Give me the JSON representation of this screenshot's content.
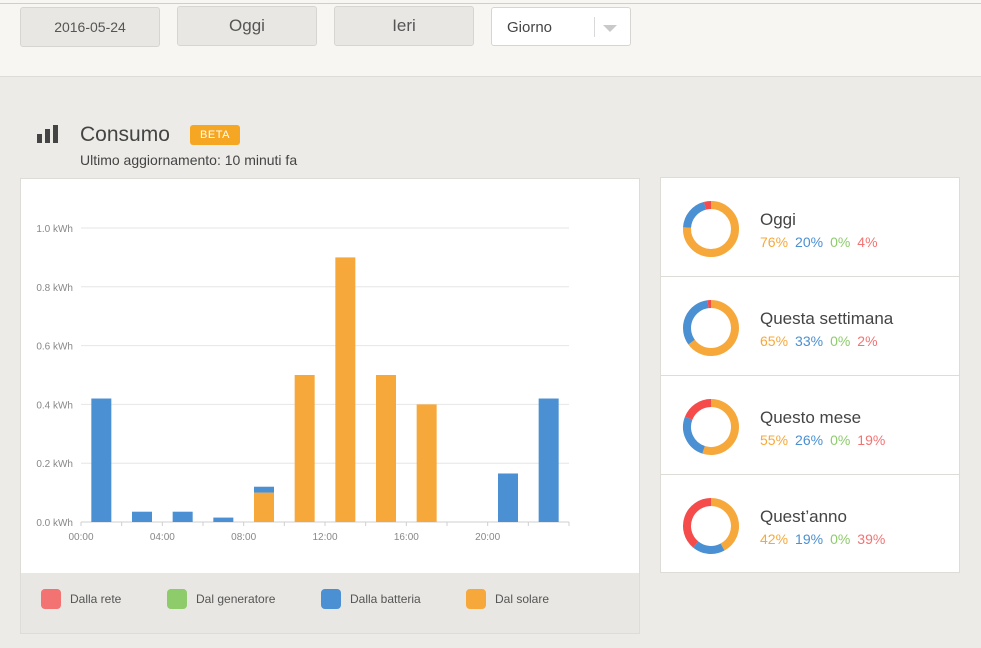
{
  "toolbar": {
    "date": "2016-05-24",
    "today_label": "Oggi",
    "yesterday_label": "Ieri",
    "period_select": "Giorno"
  },
  "section": {
    "title": "Consumo",
    "badge": "BETA",
    "updated": "Ultimo aggiornamento: 10 minuti fa"
  },
  "colors": {
    "grid": "#f54b4b",
    "generator": "#7cc35a",
    "battery": "#4a90d2",
    "solar": "#f7a83a"
  },
  "legend": [
    {
      "label": "Dalla rete",
      "color": "#f37373"
    },
    {
      "label": "Dal generatore",
      "color": "#8dcb6b"
    },
    {
      "label": "Dalla batteria",
      "color": "#4a90d2"
    },
    {
      "label": "Dal solare",
      "color": "#f7a83a"
    }
  ],
  "chart_data": {
    "type": "bar",
    "stacked": true,
    "ylim": [
      0,
      1.0
    ],
    "y_ticks": [
      "0.0 kWh",
      "0.2 kWh",
      "0.4 kWh",
      "0.6 kWh",
      "0.8 kWh",
      "1.0 kWh"
    ],
    "x_ticks": [
      "00:00",
      "04:00",
      "08:00",
      "12:00",
      "16:00",
      "20:00"
    ],
    "hours": [
      1,
      3,
      5,
      7,
      9,
      11,
      13,
      15,
      17,
      19,
      21,
      23
    ],
    "series": [
      {
        "name": "Dal solare",
        "color": "#f7a83a",
        "values": [
          0,
          0,
          0,
          0,
          0.1,
          0.5,
          0.9,
          0.5,
          0.4,
          0,
          0,
          0
        ]
      },
      {
        "name": "Dalla batteria",
        "color": "#4a90d2",
        "values": [
          0.42,
          0.035,
          0.035,
          0.015,
          0.02,
          0,
          0,
          0,
          0,
          0,
          0.165,
          0.42
        ]
      },
      {
        "name": "Dal generatore",
        "color": "#8dcb6b",
        "values": [
          0,
          0,
          0,
          0,
          0,
          0,
          0,
          0,
          0,
          0,
          0,
          0
        ]
      },
      {
        "name": "Dalla rete",
        "color": "#f37373",
        "values": [
          0,
          0,
          0,
          0,
          0,
          0,
          0,
          0,
          0,
          0,
          0,
          0
        ]
      }
    ]
  },
  "summary": [
    {
      "title": "Oggi",
      "solar": 76,
      "battery": 20,
      "generator": 0,
      "grid": 4
    },
    {
      "title": "Questa settimana",
      "solar": 65,
      "battery": 33,
      "generator": 0,
      "grid": 2
    },
    {
      "title": "Questo mese",
      "solar": 55,
      "battery": 26,
      "generator": 0,
      "grid": 19
    },
    {
      "title": "Quest’anno",
      "solar": 42,
      "battery": 19,
      "generator": 0,
      "grid": 39
    }
  ]
}
